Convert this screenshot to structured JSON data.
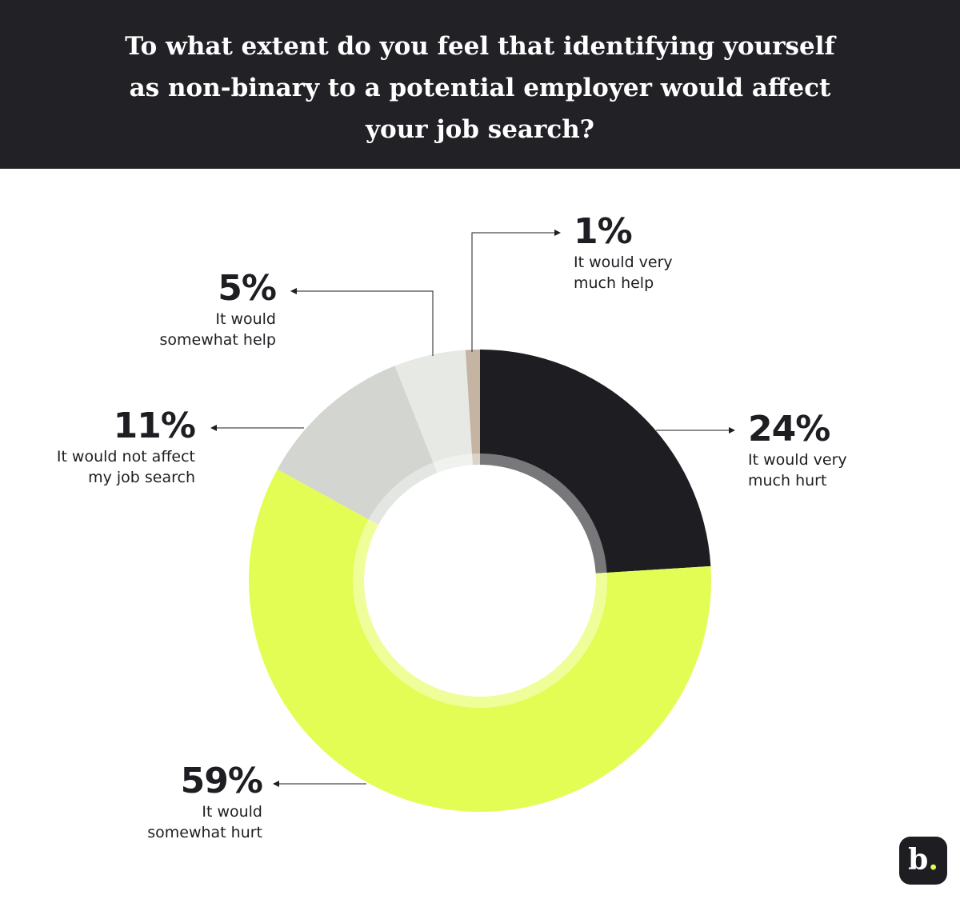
{
  "chart_data": {
    "type": "donut",
    "title": "To what extent do you feel that identifying yourself as non-binary to a potential employer would affect your job search?",
    "categories": [
      "It would very much hurt",
      "It would somewhat hurt",
      "It would not affect my job search",
      "It would somewhat help",
      "It would very much help"
    ],
    "values": [
      24,
      59,
      11,
      5,
      1
    ],
    "value_labels": [
      "24%",
      "59%",
      "11%",
      "5%",
      "1%"
    ],
    "colors": [
      "#1e1d22",
      "#e4fd55",
      "#d3d5d0",
      "#e6e9e4",
      "#c6b4a3"
    ]
  },
  "logo": {
    "letter": "b",
    "dot": "."
  }
}
